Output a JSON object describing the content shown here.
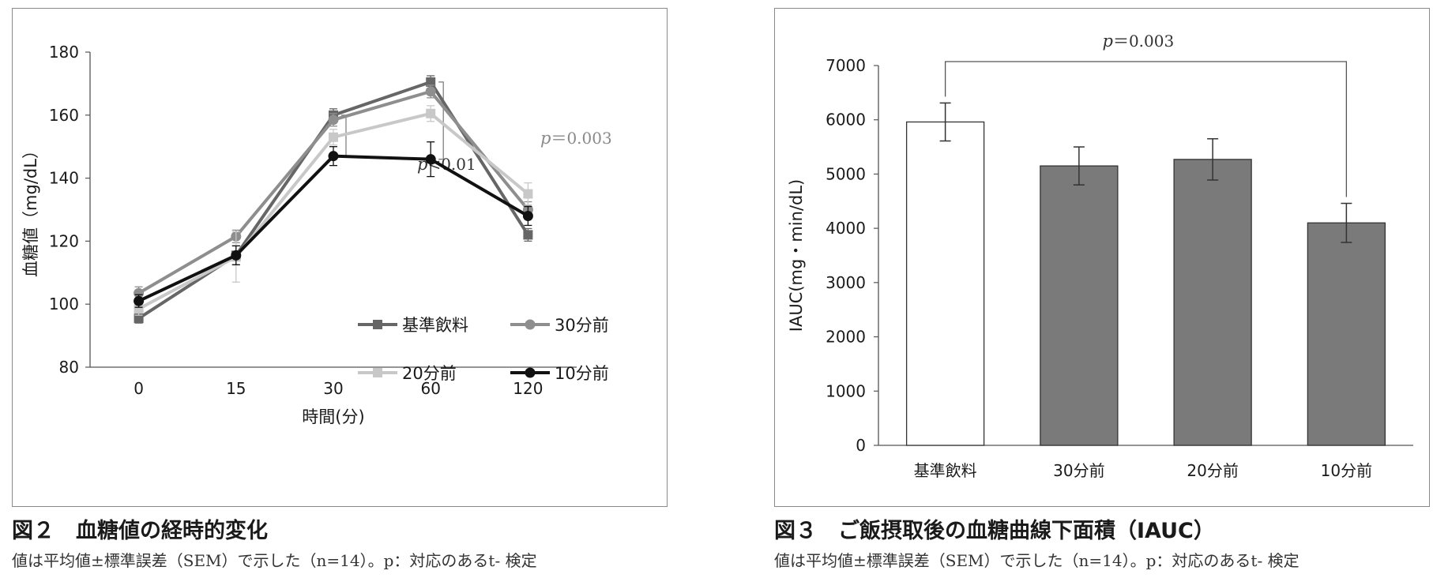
{
  "figure2": {
    "title": "図２　血糖値の経時的変化",
    "note": "値は平均値±標準誤差（SEM）で示した（n=14）。p：対応のあるt- 検定"
  },
  "figure3": {
    "title": "図３　ご飯摂取後の血糖曲線下面積（IAUC）",
    "note": "値は平均値±標準誤差（SEM）で示した（n=14）。p：対応のあるt- 検定"
  },
  "chart_data": [
    {
      "type": "line",
      "x": [
        0,
        15,
        30,
        60,
        120
      ],
      "categories": [
        "0",
        "15",
        "30",
        "60",
        "120"
      ],
      "xlabel": "時間(分)",
      "ylabel": "血糖値（mg/dL）",
      "ylim": [
        80,
        180
      ],
      "yticks": [
        80,
        100,
        120,
        140,
        160,
        180
      ],
      "legend_placement": "inside-bottom-right",
      "series": [
        {
          "name": "基準飲料",
          "values": [
            95.5,
            115.5,
            160,
            170.5,
            122
          ],
          "err": [
            1.5,
            3,
            2,
            2,
            2
          ],
          "color": "#666666",
          "marker": "square"
        },
        {
          "name": "30分前",
          "values": [
            103.5,
            121.5,
            158.5,
            167.5,
            130
          ],
          "err": [
            2,
            2,
            2,
            2,
            2.5
          ],
          "color": "#8e8e8e",
          "marker": "circle"
        },
        {
          "name": "20分前",
          "values": [
            98.5,
            115,
            153,
            160.5,
            135
          ],
          "err": [
            2,
            8,
            2.5,
            2.5,
            3.5
          ],
          "color": "#c8c8c8",
          "marker": "square"
        },
        {
          "name": "10分前",
          "values": [
            101,
            115.5,
            147,
            146,
            128
          ],
          "err": [
            2,
            3,
            3,
            5.5,
            3
          ],
          "color": "#111111",
          "marker": "circle"
        }
      ],
      "annotations": [
        {
          "label": "p",
          "text": "<0.01"
        },
        {
          "label": "p",
          "text": "＝0.003"
        }
      ]
    },
    {
      "type": "bar",
      "categories": [
        "基準飲料",
        "30分前",
        "20分前",
        "10分前"
      ],
      "values": [
        5960,
        5150,
        5270,
        4100
      ],
      "err": [
        350,
        350,
        380,
        360
      ],
      "colors": [
        "#ffffff",
        "#7a7a7a",
        "#7a7a7a",
        "#7a7a7a"
      ],
      "ylabel": "IAUC(mg・min/dL)",
      "ylim": [
        0,
        7000
      ],
      "yticks": [
        0,
        1000,
        2000,
        3000,
        4000,
        5000,
        6000,
        7000
      ],
      "annotations": [
        {
          "label": "p",
          "text": "＝0.003"
        }
      ]
    }
  ]
}
